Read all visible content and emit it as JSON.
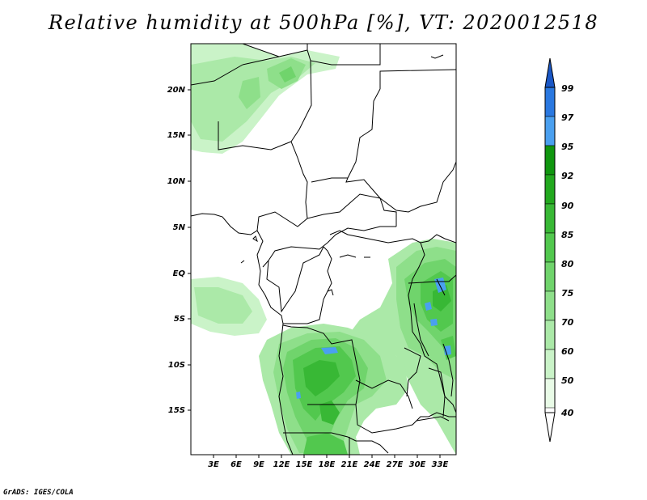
{
  "title": "Relative humidity at 500hPa [%], VT: 2020012518",
  "credit": "GrADS: IGES/COLA",
  "map": {
    "lat_labels": [
      "20N",
      "15N",
      "10N",
      "5N",
      "EQ",
      "5S",
      "10S",
      "15S"
    ],
    "lon_labels": [
      "3E",
      "6E",
      "9E",
      "12E",
      "15E",
      "18E",
      "21E",
      "24E",
      "27E",
      "30E",
      "33E"
    ]
  },
  "colorbar": {
    "labels": [
      "99",
      "97",
      "95",
      "92",
      "90",
      "85",
      "80",
      "75",
      "70",
      "60",
      "50",
      "40"
    ],
    "colors": [
      "#1a57c6",
      "#2a78e0",
      "#4aa0f0",
      "#10960f",
      "#22a81e",
      "#38b835",
      "#52c84e",
      "#70d46c",
      "#8edf8a",
      "#abe9a8",
      "#caf3c8",
      "#e9fbe7",
      "#ffffff"
    ]
  },
  "colors": {
    "land_line": "#000000",
    "frame": "#000000",
    "background": "#ffffff"
  }
}
